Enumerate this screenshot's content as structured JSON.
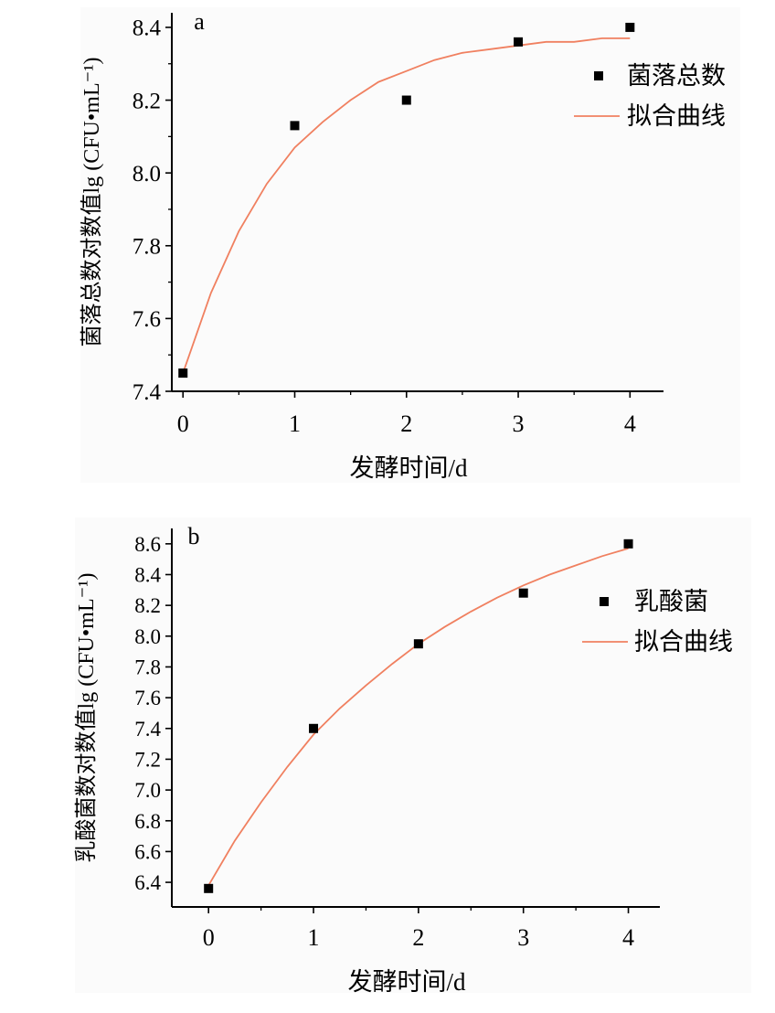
{
  "chart_data": [
    {
      "panel_label": "a",
      "type": "scatter",
      "xlabel": "发酵时间/d",
      "ylabel": "菌落总数对数值lg (CFU•mL⁻¹)",
      "xlim": [
        -0.1,
        4.3
      ],
      "ylim": [
        7.4,
        8.44
      ],
      "xticks": [
        "0",
        "1",
        "2",
        "3",
        "4"
      ],
      "yticks": [
        "7.4",
        "7.6",
        "7.8",
        "8.0",
        "8.2",
        "8.4"
      ],
      "legend": {
        "position": "right",
        "entries": [
          "菌落总数",
          "拟合曲线"
        ]
      },
      "series": [
        {
          "name": "菌落总数",
          "kind": "scatter",
          "color": "#000000",
          "x": [
            0,
            1,
            2,
            3,
            4
          ],
          "y": [
            7.45,
            8.13,
            8.2,
            8.36,
            8.4
          ]
        },
        {
          "name": "拟合曲线",
          "kind": "line",
          "color": "#f08060",
          "x": [
            0,
            0.25,
            0.5,
            0.75,
            1,
            1.25,
            1.5,
            1.75,
            2,
            2.25,
            2.5,
            2.75,
            3,
            3.25,
            3.5,
            3.75,
            4
          ],
          "y": [
            7.45,
            7.67,
            7.84,
            7.97,
            8.07,
            8.14,
            8.2,
            8.25,
            8.28,
            8.31,
            8.33,
            8.34,
            8.35,
            8.36,
            8.36,
            8.37,
            8.37
          ]
        }
      ]
    },
    {
      "panel_label": "b",
      "type": "scatter",
      "xlabel": "发酵时间/d",
      "ylabel": "乳酸菌数对数值lg (CFU•mL⁻¹)",
      "xlim": [
        -0.35,
        4.3
      ],
      "ylim": [
        6.24,
        8.7
      ],
      "xticks": [
        "0",
        "1",
        "2",
        "3",
        "4"
      ],
      "yticks": [
        "6.4",
        "6.6",
        "6.8",
        "7.0",
        "7.2",
        "7.4",
        "7.6",
        "7.8",
        "8.0",
        "8.2",
        "8.4",
        "8.6"
      ],
      "legend": {
        "position": "right",
        "entries": [
          "乳酸菌",
          "拟合曲线"
        ]
      },
      "series": [
        {
          "name": "乳酸菌",
          "kind": "scatter",
          "color": "#000000",
          "x": [
            0,
            1,
            2,
            3,
            4
          ],
          "y": [
            6.36,
            7.4,
            7.95,
            8.28,
            8.6
          ]
        },
        {
          "name": "拟合曲线",
          "kind": "line",
          "color": "#f08060",
          "x": [
            0,
            0.25,
            0.5,
            0.75,
            1,
            1.25,
            1.5,
            1.75,
            2,
            2.25,
            2.5,
            2.75,
            3,
            3.25,
            3.5,
            3.75,
            4
          ],
          "y": [
            6.38,
            6.67,
            6.92,
            7.15,
            7.36,
            7.53,
            7.68,
            7.82,
            7.95,
            8.06,
            8.16,
            8.25,
            8.33,
            8.4,
            8.46,
            8.52,
            8.57
          ]
        }
      ]
    }
  ]
}
